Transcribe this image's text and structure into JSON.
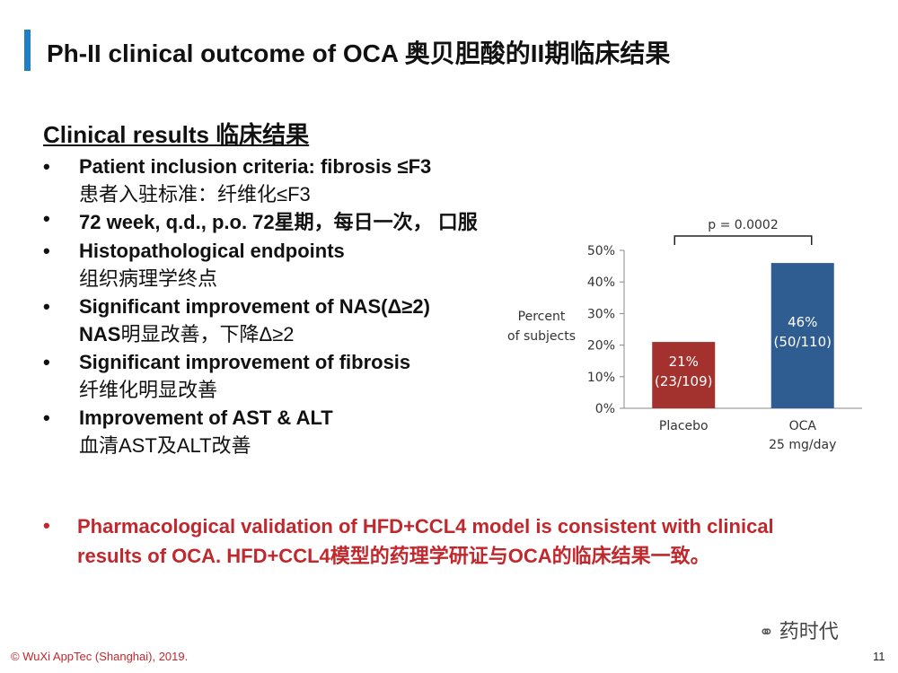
{
  "slide": {
    "title": "Ph-II clinical outcome of OCA 奥贝胆酸的II期临床结果",
    "section_heading": "Clinical results  临床结果",
    "bullets": [
      {
        "en": "Patient inclusion criteria: fibrosis ≤F3",
        "zh_prefix": "",
        "zh": "患者入驻标准：纤维化≤F3"
      },
      {
        "en": "72 week, q.d., p.o. 72星期，每日一次， 口服",
        "zh_prefix": "",
        "zh": ""
      },
      {
        "en": "Histopathological endpoints",
        "zh_prefix": "",
        "zh": "组织病理学终点"
      },
      {
        "en": "Significant improvement of NAS(Δ≥2)",
        "zh_prefix": "NAS",
        "zh": "明显改善，下降Δ≥2"
      },
      {
        "en": "Significant improvement of fibrosis",
        "zh_prefix": "",
        "zh": "纤维化明显改善"
      },
      {
        "en": "Improvement of AST & ALT",
        "zh_prefix": "",
        "zh": "血清AST及ALT改善"
      }
    ],
    "bullet_symbol": "•",
    "red_note": "Pharmacological validation of HFD+CCL4 model is consistent with clinical results of OCA. HFD+CCL4模型的药理学研证与OCA的临床结果一致。",
    "footer": "© WuXi AppTec (Shanghai), 2019.",
    "page_number": "11",
    "watermark": "药时代",
    "watermark_icon": "wechat-icon"
  },
  "chart_data": {
    "type": "bar",
    "categories": [
      "Placebo",
      "OCA"
    ],
    "category_sublabels": [
      "",
      "25 mg/day"
    ],
    "values": [
      21,
      46
    ],
    "bar_labels": [
      [
        "21%",
        "(23/109)"
      ],
      [
        "46%",
        "(50/110)"
      ]
    ],
    "colors": [
      "#a3312e",
      "#2f5d92"
    ],
    "ylabel": "Percent of subjects",
    "ylabel_lines": [
      "Percent",
      "of subjects"
    ],
    "ylim": [
      0,
      50
    ],
    "yticks": [
      0,
      10,
      20,
      30,
      40,
      50
    ],
    "ytick_labels": [
      "0%",
      "10%",
      "20%",
      "30%",
      "40%",
      "50%"
    ],
    "annotation": "p = 0.0002",
    "grid": false
  }
}
